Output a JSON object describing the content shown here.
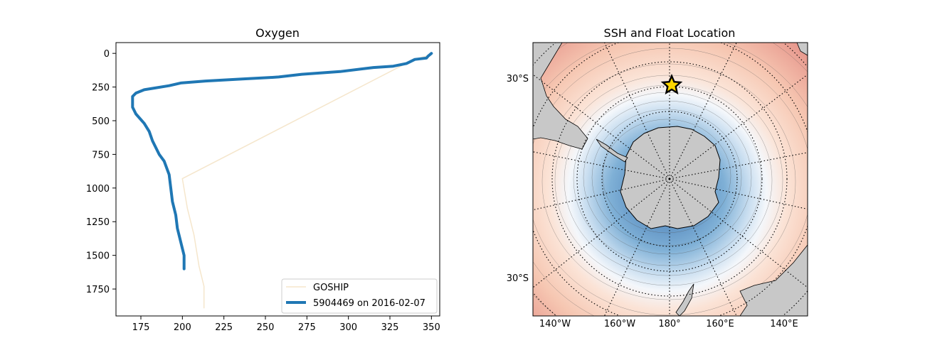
{
  "chart_data": [
    {
      "type": "line",
      "title": "Oxygen",
      "xlabel": "",
      "ylabel": "",
      "xlim": [
        160,
        355
      ],
      "ylim": [
        1950,
        -80
      ],
      "y_inverted": true,
      "xticks": [
        175,
        200,
        225,
        250,
        275,
        300,
        325,
        350
      ],
      "yticks": [
        0,
        250,
        500,
        750,
        1000,
        1250,
        1500,
        1750
      ],
      "grid": false,
      "legend_position": "lower-right",
      "series": [
        {
          "name": "GOSHIP",
          "color": "#f5e6cc",
          "x": [
            349,
            347,
            341,
            337,
            200,
            203,
            207,
            210,
            213,
            213
          ],
          "y": [
            5,
            20,
            40,
            60,
            930,
            1150,
            1350,
            1580,
            1730,
            1890
          ]
        },
        {
          "name": "5904469 on 2016-02-07",
          "color": "#1f77b4",
          "x": [
            350,
            348,
            347,
            340,
            335,
            327,
            315,
            295,
            272,
            258,
            252,
            236,
            214,
            199,
            192,
            182,
            177,
            172,
            170,
            170,
            170,
            172,
            177,
            180,
            182,
            186,
            189,
            192,
            193,
            194,
            196,
            197,
            199,
            201,
            201
          ],
          "y": [
            0,
            20,
            35,
            45,
            75,
            95,
            105,
            135,
            155,
            175,
            180,
            190,
            205,
            220,
            240,
            260,
            270,
            295,
            320,
            350,
            400,
            450,
            520,
            580,
            650,
            750,
            800,
            900,
            1000,
            1100,
            1200,
            1300,
            1400,
            1500,
            1600
          ]
        }
      ]
    },
    {
      "type": "map",
      "title": "SSH and Float Location",
      "projection": "south-polar-stereographic",
      "lat_labels": [
        "30°S",
        "30°S"
      ],
      "lon_labels": [
        "140°W",
        "160°W",
        "180°",
        "160°E",
        "140°E"
      ],
      "colormap": "RdBu_r",
      "land_color": "#c8c8c8",
      "float_location_marker": "star",
      "marker_color": "#ffd700",
      "marker_edge_color": "#000000"
    }
  ]
}
